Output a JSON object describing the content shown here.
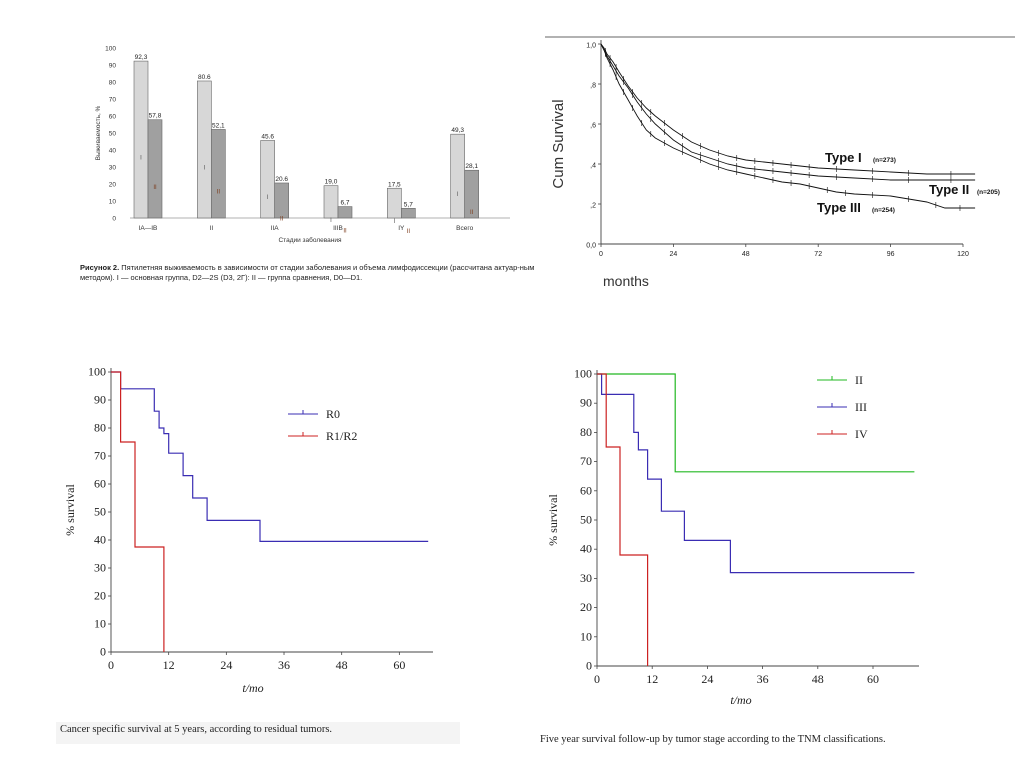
{
  "bar_panel": {
    "caption_lead": "Рисунок 2.",
    "caption_body": "Пятилетняя выживаемость в зависимости от стадии заболевания и объема лимфодиссекции (рассчитана актуар-ным методом). I — основная группа, D2—2S (D3, 2Г): II — группа сравнения, D0—D1."
  },
  "km1_panel": {},
  "km2_panel": {
    "caption": "Cancer specific survival at 5 years, according to residual tumors."
  },
  "km3_panel": {
    "caption": "Five year survival follow-up by tumor stage according to the TNM classifications."
  },
  "chart_data": [
    {
      "type": "bar",
      "xlabel": "Стадии заболевания",
      "ylabel": "Выживаемость, %",
      "ylim": [
        0,
        100
      ],
      "yticks": [
        0,
        10,
        20,
        30,
        40,
        50,
        60,
        70,
        80,
        90,
        100
      ],
      "categories": [
        "IA—IB",
        "II",
        "IIA",
        "IIIB",
        "IY",
        "Всего"
      ],
      "series": [
        {
          "name": "I",
          "values": [
            92.3,
            80.6,
            45.6,
            19.0,
            17.5,
            49.3
          ],
          "labels": [
            "92,3",
            "80.6",
            "45.6",
            "19,0",
            "17,5",
            "49,3"
          ],
          "color": "#d7d7d7"
        },
        {
          "name": "II",
          "values": [
            57.8,
            52.1,
            20.6,
            6.7,
            5.7,
            28.1
          ],
          "labels": [
            "57,8",
            "52,1",
            "20.6",
            "6,7",
            "5,7",
            "28,1"
          ],
          "color": "#a0a0a0"
        }
      ],
      "bar_marks": [
        "I",
        "II"
      ]
    },
    {
      "type": "line",
      "xlabel": "months",
      "ylabel": "Cum Survival",
      "xlim": [
        0,
        120
      ],
      "ylim": [
        0,
        1
      ],
      "xticks": [
        0,
        24,
        48,
        72,
        96,
        120
      ],
      "yticks": [
        "0,0",
        ",2",
        ",4",
        ",6",
        ",8",
        "1,0"
      ],
      "ytick_values": [
        0,
        0.2,
        0.4,
        0.6,
        0.8,
        1.0
      ],
      "series": [
        {
          "name": "Type I",
          "n_label": "(n=273)",
          "color": "#111111",
          "points": [
            [
              0,
              1.0
            ],
            [
              1,
              0.98
            ],
            [
              2,
              0.95
            ],
            [
              4,
              0.91
            ],
            [
              6,
              0.86
            ],
            [
              9,
              0.79
            ],
            [
              12,
              0.73
            ],
            [
              15,
              0.68
            ],
            [
              18,
              0.64
            ],
            [
              24,
              0.57
            ],
            [
              30,
              0.51
            ],
            [
              36,
              0.47
            ],
            [
              42,
              0.44
            ],
            [
              48,
              0.42
            ],
            [
              54,
              0.41
            ],
            [
              60,
              0.4
            ],
            [
              66,
              0.39
            ],
            [
              72,
              0.38
            ],
            [
              84,
              0.37
            ],
            [
              96,
              0.36
            ],
            [
              108,
              0.35
            ],
            [
              124,
              0.35
            ]
          ]
        },
        {
          "name": "Type II",
          "n_label": "(n=205)",
          "color": "#111111",
          "points": [
            [
              0,
              1.0
            ],
            [
              1,
              0.97
            ],
            [
              2,
              0.94
            ],
            [
              4,
              0.89
            ],
            [
              6,
              0.84
            ],
            [
              9,
              0.78
            ],
            [
              12,
              0.71
            ],
            [
              15,
              0.65
            ],
            [
              18,
              0.6
            ],
            [
              24,
              0.52
            ],
            [
              30,
              0.46
            ],
            [
              36,
              0.43
            ],
            [
              42,
              0.4
            ],
            [
              48,
              0.38
            ],
            [
              54,
              0.37
            ],
            [
              60,
              0.36
            ],
            [
              66,
              0.35
            ],
            [
              72,
              0.34
            ],
            [
              84,
              0.33
            ],
            [
              96,
              0.32
            ],
            [
              108,
              0.32
            ],
            [
              124,
              0.32
            ]
          ]
        },
        {
          "name": "Type III",
          "n_label": "(n=254)",
          "color": "#111111",
          "points": [
            [
              0,
              1.0
            ],
            [
              1,
              0.97
            ],
            [
              2,
              0.93
            ],
            [
              4,
              0.87
            ],
            [
              6,
              0.8
            ],
            [
              9,
              0.72
            ],
            [
              12,
              0.64
            ],
            [
              15,
              0.57
            ],
            [
              18,
              0.53
            ],
            [
              24,
              0.48
            ],
            [
              30,
              0.44
            ],
            [
              36,
              0.4
            ],
            [
              42,
              0.37
            ],
            [
              48,
              0.35
            ],
            [
              54,
              0.33
            ],
            [
              60,
              0.31
            ],
            [
              66,
              0.3
            ],
            [
              72,
              0.28
            ],
            [
              78,
              0.26
            ],
            [
              84,
              0.25
            ],
            [
              96,
              0.24
            ],
            [
              108,
              0.21
            ],
            [
              114,
              0.18
            ],
            [
              124,
              0.18
            ]
          ]
        }
      ]
    },
    {
      "type": "line",
      "xlabel": "t/mo",
      "ylabel": "% survival",
      "xlim": [
        0,
        67
      ],
      "ylim": [
        0,
        100
      ],
      "xticks": [
        0,
        12,
        24,
        36,
        48,
        60
      ],
      "yticks": [
        0,
        10,
        20,
        30,
        40,
        50,
        60,
        70,
        80,
        90,
        100
      ],
      "series": [
        {
          "name": "R0",
          "color": "#3a2db3",
          "points": [
            [
              0,
              100
            ],
            [
              2,
              100
            ],
            [
              2,
              94
            ],
            [
              9,
              94
            ],
            [
              9,
              86
            ],
            [
              10,
              86
            ],
            [
              10,
              80
            ],
            [
              11,
              80
            ],
            [
              11,
              78
            ],
            [
              12,
              78
            ],
            [
              12,
              71
            ],
            [
              15,
              71
            ],
            [
              15,
              63
            ],
            [
              17,
              63
            ],
            [
              17,
              55
            ],
            [
              20,
              55
            ],
            [
              20,
              47
            ],
            [
              31,
              47
            ],
            [
              31,
              39.5
            ],
            [
              66,
              39.5
            ]
          ]
        },
        {
          "name": "R1/R2",
          "color": "#cc2222",
          "points": [
            [
              0,
              100
            ],
            [
              2,
              100
            ],
            [
              2,
              75
            ],
            [
              5,
              75
            ],
            [
              5,
              37.5
            ],
            [
              11,
              37.5
            ],
            [
              11,
              0
            ]
          ]
        }
      ]
    },
    {
      "type": "line",
      "xlabel": "t/mo",
      "ylabel": "% survival",
      "xlim": [
        0,
        70
      ],
      "ylim": [
        0,
        100
      ],
      "xticks": [
        0,
        12,
        24,
        36,
        48,
        60
      ],
      "yticks": [
        0,
        10,
        20,
        30,
        40,
        50,
        60,
        70,
        80,
        90,
        100
      ],
      "series": [
        {
          "name": "II",
          "color": "#22b822",
          "points": [
            [
              0,
              100
            ],
            [
              17,
              100
            ],
            [
              17,
              66.5
            ],
            [
              69,
              66.5
            ]
          ]
        },
        {
          "name": "III",
          "color": "#3a2db3",
          "points": [
            [
              0,
              100
            ],
            [
              1,
              100
            ],
            [
              1,
              93
            ],
            [
              8,
              93
            ],
            [
              8,
              80
            ],
            [
              9,
              80
            ],
            [
              9,
              74
            ],
            [
              11,
              74
            ],
            [
              11,
              64
            ],
            [
              14,
              64
            ],
            [
              14,
              53
            ],
            [
              19,
              53
            ],
            [
              19,
              43
            ],
            [
              29,
              43
            ],
            [
              29,
              32
            ],
            [
              69,
              32
            ]
          ]
        },
        {
          "name": "IV",
          "color": "#cc2222",
          "points": [
            [
              0,
              100
            ],
            [
              2,
              100
            ],
            [
              2,
              75
            ],
            [
              5,
              75
            ],
            [
              5,
              38
            ],
            [
              11,
              38
            ],
            [
              11,
              0
            ]
          ]
        }
      ]
    }
  ]
}
